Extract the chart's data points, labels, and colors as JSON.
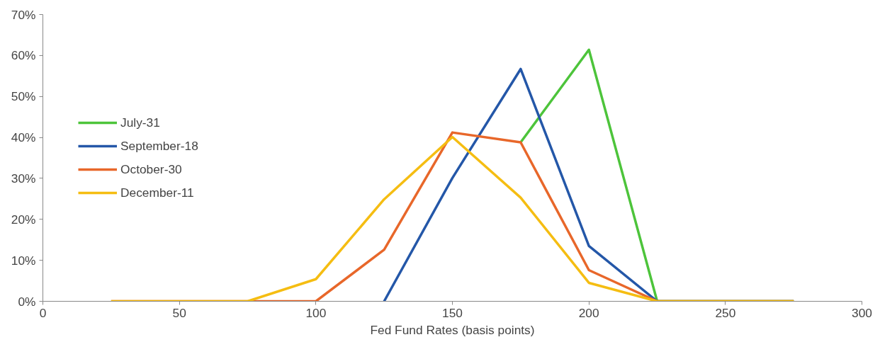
{
  "chart_data": {
    "type": "line",
    "xlabel": "Fed Fund Rates (basis points)",
    "x": [
      25,
      50,
      75,
      100,
      125,
      150,
      175,
      200,
      225,
      250,
      275
    ],
    "series": [
      {
        "name": "July-31",
        "color": "#4dc43b",
        "values": [
          null,
          null,
          null,
          null,
          null,
          null,
          38.8,
          61.4,
          0,
          0,
          0
        ]
      },
      {
        "name": "September-18",
        "color": "#2457a8",
        "values": [
          null,
          null,
          null,
          null,
          0,
          30.1,
          56.7,
          13.5,
          0,
          0,
          0
        ]
      },
      {
        "name": "October-30",
        "color": "#e8672a",
        "values": [
          0,
          0,
          0,
          0,
          12.6,
          41.2,
          38.8,
          7.6,
          0,
          0,
          0
        ]
      },
      {
        "name": "December-11",
        "color": "#f5bd12",
        "values": [
          0,
          0,
          0,
          5.4,
          24.9,
          40.1,
          25.3,
          4.5,
          0,
          0,
          0
        ]
      }
    ],
    "xlim": [
      0,
      300
    ],
    "xticks": [
      0,
      50,
      100,
      150,
      200,
      250,
      300
    ],
    "ylim": [
      0,
      70
    ],
    "yticks": [
      {
        "value": 0,
        "label": "0%"
      },
      {
        "value": 10,
        "label": "10%"
      },
      {
        "value": 20,
        "label": "20%"
      },
      {
        "value": 30,
        "label": "30%"
      },
      {
        "value": 40,
        "label": "40%"
      },
      {
        "value": 50,
        "label": "50%"
      },
      {
        "value": 60,
        "label": "60%"
      },
      {
        "value": 70,
        "label": "70%"
      }
    ],
    "grid": false,
    "legend": "left",
    "marker": "none",
    "line_style": "solid"
  }
}
